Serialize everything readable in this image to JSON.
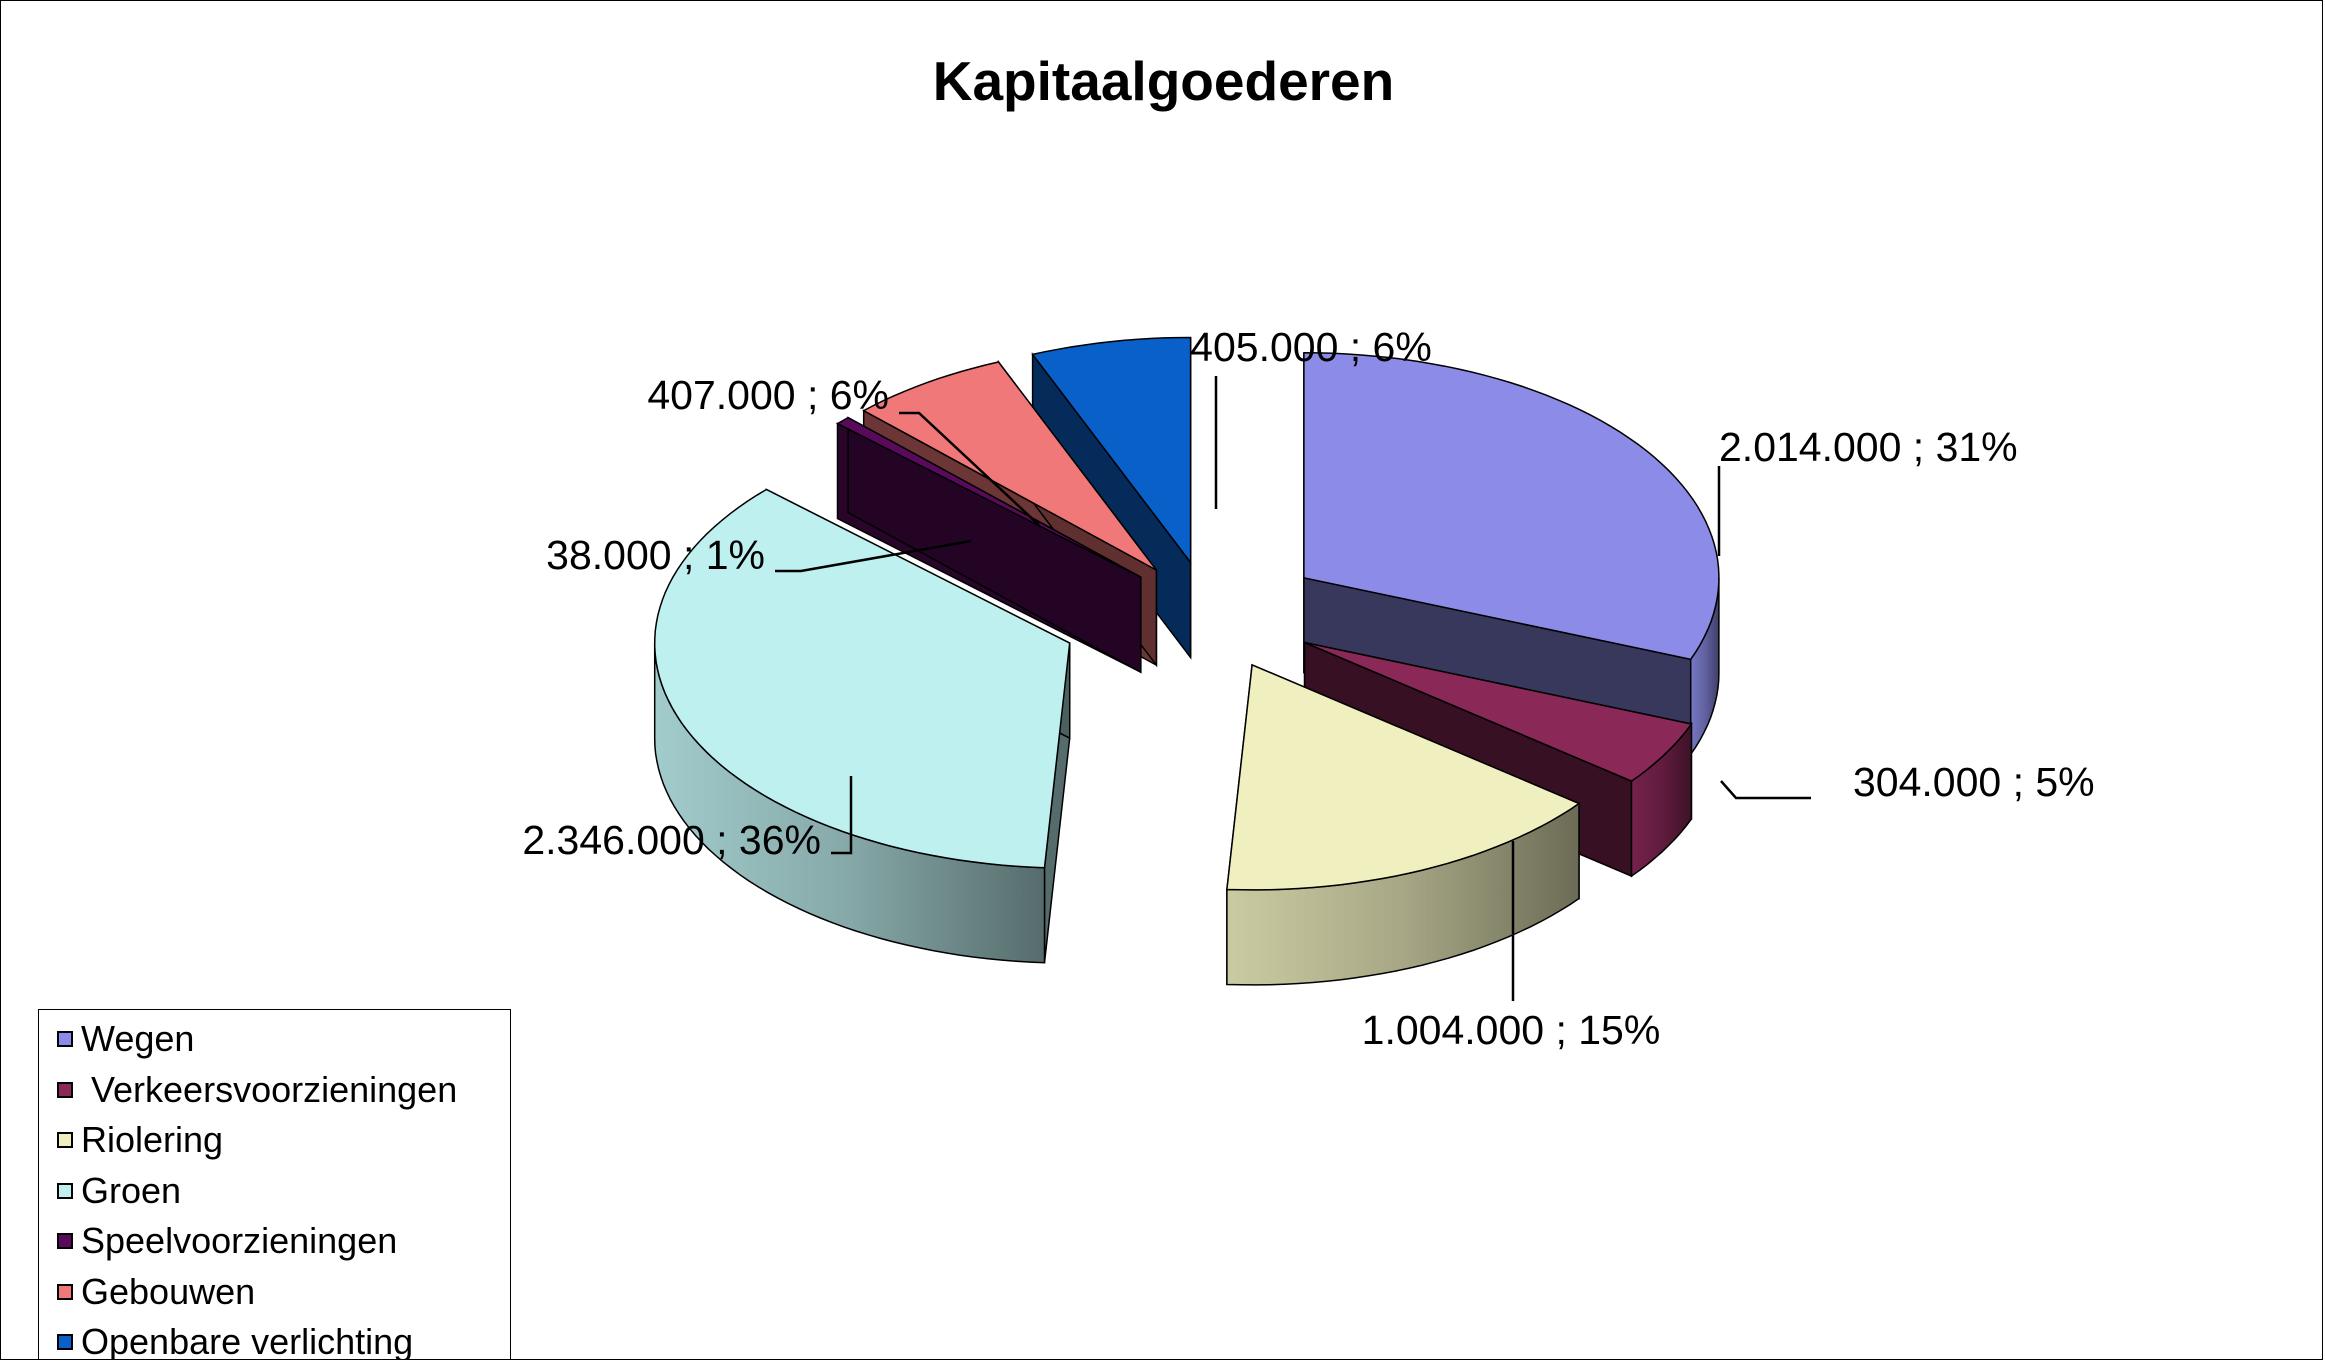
{
  "chart_data": {
    "type": "pie",
    "title": "Kapitaalgoederen",
    "slices": [
      {
        "label": "Wegen",
        "value": 2014000,
        "percent": 31,
        "data_label": "2.014.000 ; 31%",
        "color": "#8c8ce8"
      },
      {
        "label": " Verkeersvoorzieningen",
        "value": 304000,
        "percent": 5,
        "data_label": "304.000 ; 5%",
        "color": "#8a2858"
      },
      {
        "label": "Riolering",
        "value": 1004000,
        "percent": 15,
        "data_label": "1.004.000 ; 15%",
        "color": "#efefbf"
      },
      {
        "label": "Groen",
        "value": 2346000,
        "percent": 36,
        "data_label": "2.346.000 ; 36%",
        "color": "#bff0f0"
      },
      {
        "label": "Speelvoorzieningen",
        "value": 38000,
        "percent": 1,
        "data_label": "38.000 ; 1%",
        "color": "#5a0a5a"
      },
      {
        "label": "Gebouwen",
        "value": 407000,
        "percent": 6,
        "data_label": "407.000 ; 6%",
        "color": "#f07878"
      },
      {
        "label": "Openbare verlichting",
        "value": 405000,
        "percent": 6,
        "data_label": "405.000 ; 6%",
        "color": "#0860c8"
      }
    ],
    "legend_position": "bottom-left",
    "style": "3d-exploded"
  }
}
